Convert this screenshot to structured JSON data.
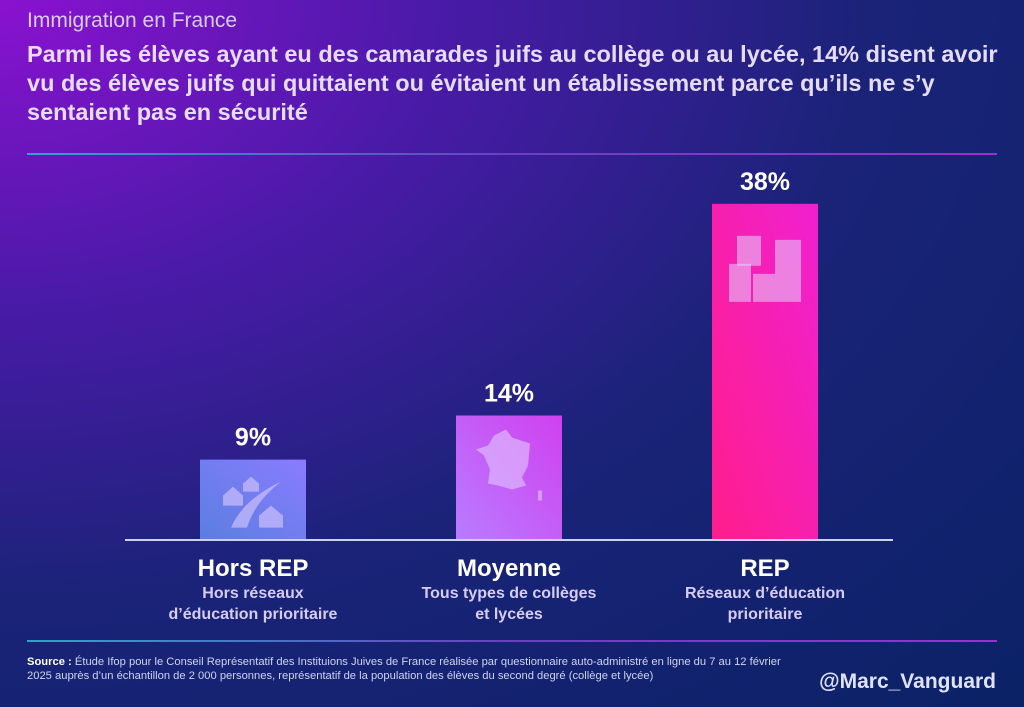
{
  "kicker": "Immigration en France",
  "headline": "Parmi les élèves ayant eu des camarades juifs au collège ou au lycée, 14% disent avoir vu des élèves juifs qui quittaient ou évitaient un établissement parce qu’ils ne s’y sentaient pas en sécurité",
  "chart_data": {
    "type": "bar",
    "categories": [
      "Hors REP",
      "Moyenne",
      "REP"
    ],
    "subtitles": [
      "Hors réseaux d’éducation prioritaire",
      "Tous types de collèges et lycées",
      "Réseaux d’éducation prioritaire"
    ],
    "values": [
      9,
      14,
      38
    ],
    "labels": [
      "9%",
      "14%",
      "38%"
    ],
    "unit": "%",
    "ylim": [
      0,
      40
    ],
    "grid": false,
    "colors": [
      [
        "#5a7ee0",
        "#8a7cff"
      ],
      [
        "#b97cff",
        "#d040f0"
      ],
      [
        "#ff1e8c",
        "#f020d0"
      ]
    ],
    "icons": [
      "houses-road-icon",
      "france-map-icon",
      "buildings-icon"
    ]
  },
  "source_label": "Source :",
  "source_text": "Étude Ifop pour le Conseil Représentatif des Instituions Juives de France réalisée par questionnaire auto-administré en ligne du 7 au 12 février 2025 auprès d’un échantillon de 2 000 personnes, représentatif de la population des élèves du second degré (collège et lycée)",
  "handle": "@Marc_Vanguard"
}
